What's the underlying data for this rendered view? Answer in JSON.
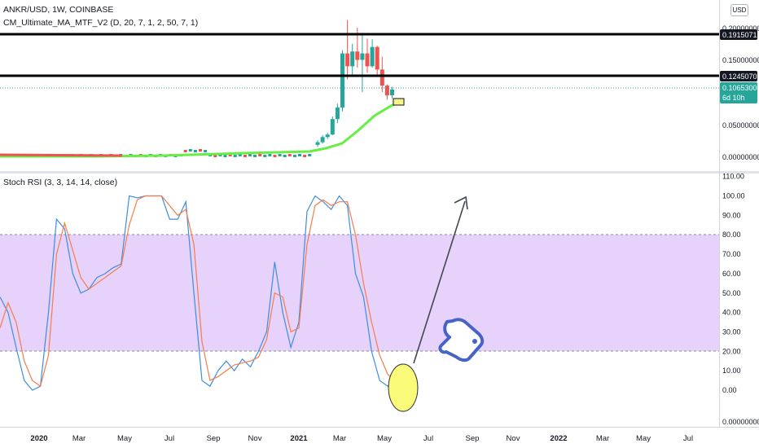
{
  "symbol_line": "ANKR/USD, 1W, COINBASE",
  "indicator_line": "CM_Ultimate_MA_MTF_V2 (D, 20, 7, 1, 2, 50, 7, 1)",
  "currency_button": "USD",
  "rsi_legend": "Stoch RSI (3, 3, 14, 14, close)",
  "price_axis": {
    "ticks": [
      "0.20000000",
      "0.15000000",
      "0.05000000",
      "0.00000000"
    ],
    "badges": {
      "line_high": "0.19150713",
      "line_low": "0.12450707",
      "current_price": "0.10653000",
      "countdown": "6d 10h"
    }
  },
  "rsi_axis": {
    "ticks": [
      "110.00",
      "100.00",
      "90.00",
      "80.00",
      "70.00",
      "60.00",
      "50.00",
      "40.00",
      "30.00",
      "20.00",
      "10.00",
      "0.00"
    ]
  },
  "bottom_axis_label": "0.00000000",
  "time_axis": [
    "2020",
    "Mar",
    "May",
    "Jul",
    "Sep",
    "Nov",
    "2021",
    "Mar",
    "May",
    "Jul",
    "Sep",
    "Nov",
    "2022",
    "Mar",
    "May",
    "Jul"
  ],
  "colors": {
    "up": "#26a69a",
    "down": "#ef5350",
    "ma": "#66ee44",
    "band": "#e7d2fb",
    "k_line": "#3c8ee0",
    "d_line": "#f57c4c",
    "price_badge": "#26a69a",
    "dark_badge": "#131722",
    "highlight": "#fbfb7a",
    "hand": "#4763c8"
  },
  "chart_data": [
    {
      "type": "candlestick",
      "horizontal_levels": [
        0.19150713,
        0.12450707
      ],
      "current_price": 0.10653,
      "ylim": [
        0,
        0.21
      ],
      "candles": [
        {
          "x": "2021-02-08",
          "o": 0.018,
          "h": 0.025,
          "l": 0.015,
          "c": 0.022
        },
        {
          "x": "2021-02-15",
          "o": 0.022,
          "h": 0.033,
          "l": 0.02,
          "c": 0.03
        },
        {
          "x": "2021-02-22",
          "o": 0.03,
          "h": 0.037,
          "l": 0.027,
          "c": 0.034
        },
        {
          "x": "2021-03-01",
          "o": 0.034,
          "h": 0.062,
          "l": 0.033,
          "c": 0.058
        },
        {
          "x": "2021-03-08",
          "o": 0.058,
          "h": 0.082,
          "l": 0.052,
          "c": 0.076
        },
        {
          "x": "2021-03-15",
          "o": 0.076,
          "h": 0.165,
          "l": 0.07,
          "c": 0.16
        },
        {
          "x": "2021-03-22",
          "o": 0.16,
          "h": 0.212,
          "l": 0.12,
          "c": 0.14
        },
        {
          "x": "2021-03-29",
          "o": 0.14,
          "h": 0.175,
          "l": 0.125,
          "c": 0.163
        },
        {
          "x": "2021-04-05",
          "o": 0.163,
          "h": 0.2,
          "l": 0.138,
          "c": 0.15
        },
        {
          "x": "2021-04-12",
          "o": 0.15,
          "h": 0.192,
          "l": 0.1,
          "c": 0.16
        },
        {
          "x": "2021-04-19",
          "o": 0.16,
          "h": 0.183,
          "l": 0.13,
          "c": 0.14
        },
        {
          "x": "2021-04-26",
          "o": 0.14,
          "h": 0.182,
          "l": 0.138,
          "c": 0.17
        },
        {
          "x": "2021-05-03",
          "o": 0.17,
          "h": 0.172,
          "l": 0.125,
          "c": 0.135
        },
        {
          "x": "2021-05-10",
          "o": 0.135,
          "h": 0.155,
          "l": 0.1,
          "c": 0.11
        },
        {
          "x": "2021-05-17",
          "o": 0.11,
          "h": 0.112,
          "l": 0.088,
          "c": 0.095
        },
        {
          "x": "2021-05-24",
          "o": 0.095,
          "h": 0.108,
          "l": 0.09,
          "c": 0.104
        }
      ]
    },
    {
      "type": "line",
      "name": "Stoch RSI",
      "ylim": [
        -15,
        110
      ],
      "band": [
        20,
        80
      ],
      "series": [
        {
          "values": [
            48,
            40,
            22,
            5,
            0,
            2,
            40,
            88,
            83,
            60,
            50,
            52,
            58,
            60,
            63,
            65,
            100,
            99,
            100,
            100,
            100,
            88,
            88,
            97,
            50,
            5,
            2,
            10,
            15,
            10,
            16,
            12,
            20,
            30,
            66,
            40,
            22,
            35,
            92,
            100,
            97,
            93,
            100,
            95,
            60,
            48,
            20,
            5,
            2,
            8,
            10
          ]
        },
        {
          "values": [
            32,
            45,
            35,
            15,
            5,
            2,
            18,
            70,
            86,
            72,
            58,
            52,
            55,
            58,
            61,
            64,
            85,
            98,
            100,
            100,
            100,
            95,
            90,
            93,
            75,
            25,
            5,
            7,
            10,
            13,
            14,
            15,
            17,
            26,
            50,
            48,
            30,
            32,
            75,
            95,
            98,
            95,
            97,
            97,
            80,
            55,
            35,
            18,
            8,
            5,
            6
          ]
        }
      ]
    }
  ]
}
